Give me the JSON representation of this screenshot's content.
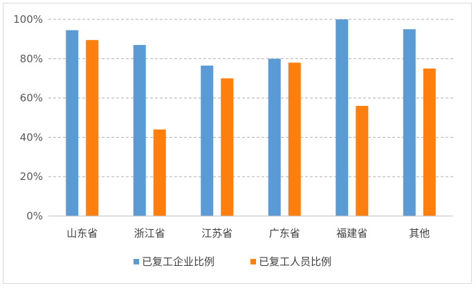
{
  "chart_data": {
    "type": "bar",
    "categories": [
      "山东省",
      "浙江省",
      "江苏省",
      "广东省",
      "福建省",
      "其他"
    ],
    "series": [
      {
        "name": "已复工企业比例",
        "color": "#5b9bd5",
        "values": [
          94.5,
          87,
          76.5,
          80,
          100,
          95
        ]
      },
      {
        "name": "已复工人员比例",
        "color": "#ff7f0e",
        "values": [
          89.5,
          44,
          70,
          78,
          56,
          75
        ]
      }
    ],
    "ylim": [
      0,
      100
    ],
    "yticks": [
      "0%",
      "20%",
      "40%",
      "60%",
      "80%",
      "100%"
    ],
    "grid": true,
    "legend_position": "bottom"
  }
}
